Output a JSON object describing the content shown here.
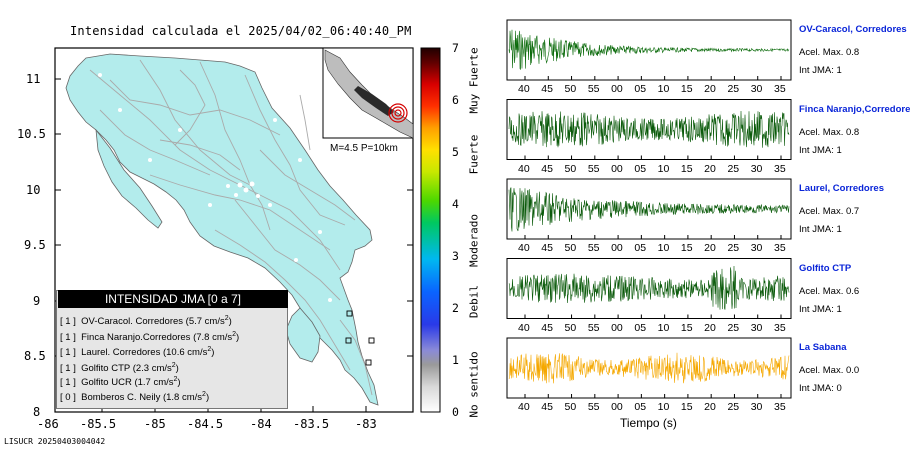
{
  "map": {
    "title": "Intensidad calculada el 2025/04/02_06:40:40_PM",
    "lat_ticks": [
      "11",
      "10.5",
      "10",
      "9.5",
      "9",
      "8.5",
      "8"
    ],
    "lon_ticks": [
      "-86",
      "-85.5",
      "-85",
      "-84.5",
      "-84",
      "-83.5",
      "-83"
    ],
    "inset_label": "M=4.5 P=10km",
    "land_color": "#b3ecec",
    "footer_id": "LISUCR 20250403004042"
  },
  "legend": {
    "title": "INTENSIDAD JMA [0 a 7]",
    "rows": [
      {
        "level": "[ 1 ]",
        "station": "OV-Caracol. Corredores",
        "value": "(5.7 cm/s",
        "sup": "2",
        "close": ")"
      },
      {
        "level": "[ 1 ]",
        "station": "Finca Naranjo.Corredores",
        "value": "(7.8 cm/s",
        "sup": "2",
        "close": ")"
      },
      {
        "level": "[ 1 ]",
        "station": "Laurel. Corredores",
        "value": "(10.6 cm/s",
        "sup": "2",
        "close": ")"
      },
      {
        "level": "[ 1 ]",
        "station": "Golfito CTP",
        "value": "(2.3 cm/s",
        "sup": "2",
        "close": ")"
      },
      {
        "level": "[ 1 ]",
        "station": "Golfito UCR",
        "value": "(1.7 cm/s",
        "sup": "2",
        "close": ")"
      },
      {
        "level": "[ 0 ]",
        "station": "Bomberos C. Neily",
        "value": "(1.8 cm/s",
        "sup": "2",
        "close": ")"
      }
    ]
  },
  "scale": {
    "ticks": [
      "7",
      "6",
      "5",
      "4",
      "3",
      "2",
      "1",
      "0"
    ],
    "categories": [
      "Muy Fuerte",
      "Fuerte",
      "Moderado",
      "Debil",
      "No sentido"
    ]
  },
  "traces": {
    "x_ticks": [
      "40",
      "45",
      "50",
      "55",
      "00",
      "05",
      "10",
      "15",
      "20",
      "25",
      "30",
      "35"
    ],
    "x_label": "Tiempo (s)",
    "items": [
      {
        "name": "OV-Caracol, Corredores",
        "acel": "Acel. Max. 0.8",
        "jma": "Int JMA: 1",
        "color": "#0a6a0a"
      },
      {
        "name": "Finca Naranjo,Corredores",
        "acel": "Acel. Max. 0.8",
        "jma": "Int JMA: 1",
        "color": "#0a5a0a"
      },
      {
        "name": "Laurel, Corredores",
        "acel": "Acel. Max. 0.7",
        "jma": "Int JMA: 1",
        "color": "#0a5a0a"
      },
      {
        "name": "Golfito CTP",
        "acel": "Acel. Max. 0.6",
        "jma": "Int JMA: 1",
        "color": "#0a5a0a"
      },
      {
        "name": "La Sabana",
        "acel": "Acel. Max. 0.0",
        "jma": "Int JMA: 0",
        "color": "#f5a800"
      }
    ]
  }
}
